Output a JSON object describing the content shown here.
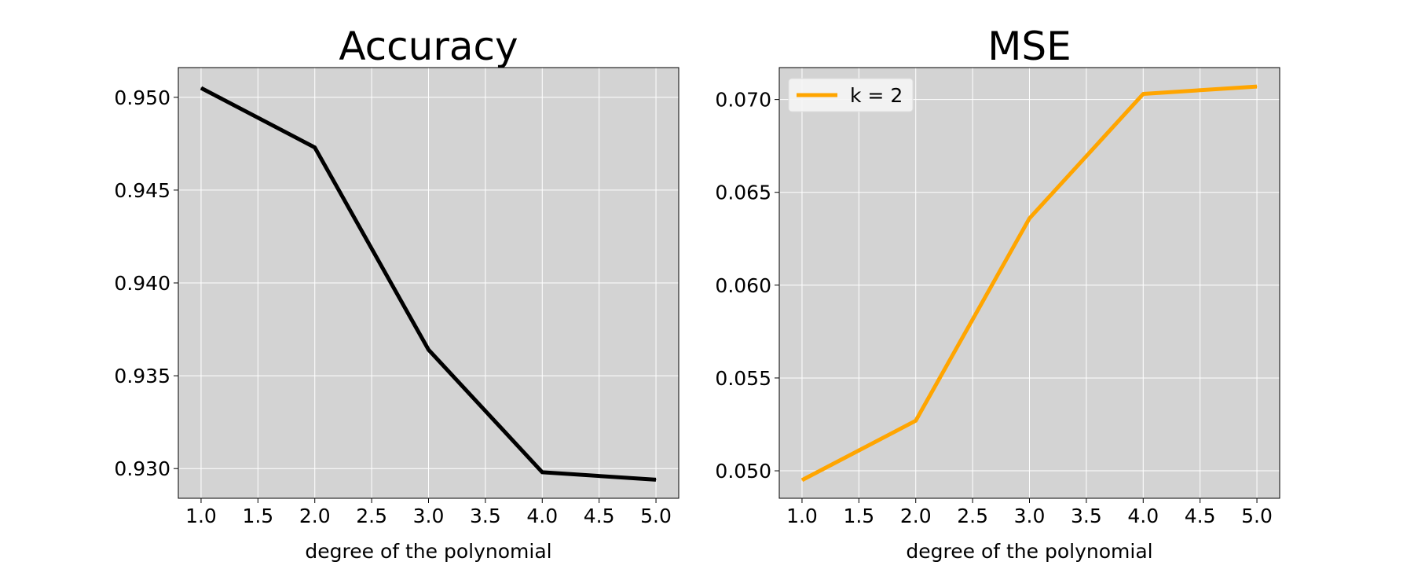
{
  "chart_data": [
    {
      "type": "line",
      "title": "Accuracy",
      "xlabel": "degree of the polynomial",
      "ylabel": "",
      "x": [
        1.0,
        2.0,
        3.0,
        4.0,
        5.0
      ],
      "series": [
        {
          "values": [
            0.9505,
            0.9473,
            0.9364,
            0.9298,
            0.9294
          ],
          "color": "#000000"
        }
      ],
      "xlim": [
        0.8,
        5.2
      ],
      "ylim": [
        0.9284,
        0.9516
      ],
      "xticks": [
        "1.0",
        "1.5",
        "2.0",
        "2.5",
        "3.0",
        "3.5",
        "4.0",
        "4.5",
        "5.0"
      ],
      "yticks": [
        "0.930",
        "0.935",
        "0.940",
        "0.945",
        "0.950"
      ],
      "grid": true,
      "background": "#d3d3d3",
      "legend": null
    },
    {
      "type": "line",
      "title": "MSE",
      "xlabel": "degree of the polynomial",
      "ylabel": "",
      "x": [
        1.0,
        2.0,
        3.0,
        4.0,
        5.0
      ],
      "series": [
        {
          "name": "k = 2",
          "values": [
            0.0495,
            0.0527,
            0.0636,
            0.0703,
            0.0707
          ],
          "color": "#ffa500"
        }
      ],
      "xlim": [
        0.8,
        5.2
      ],
      "ylim": [
        0.04852,
        0.07172
      ],
      "xticks": [
        "1.0",
        "1.5",
        "2.0",
        "2.5",
        "3.0",
        "3.5",
        "4.0",
        "4.5",
        "5.0"
      ],
      "yticks": [
        "0.050",
        "0.055",
        "0.060",
        "0.065",
        "0.070"
      ],
      "grid": true,
      "background": "#d3d3d3",
      "legend": "top-left"
    }
  ]
}
